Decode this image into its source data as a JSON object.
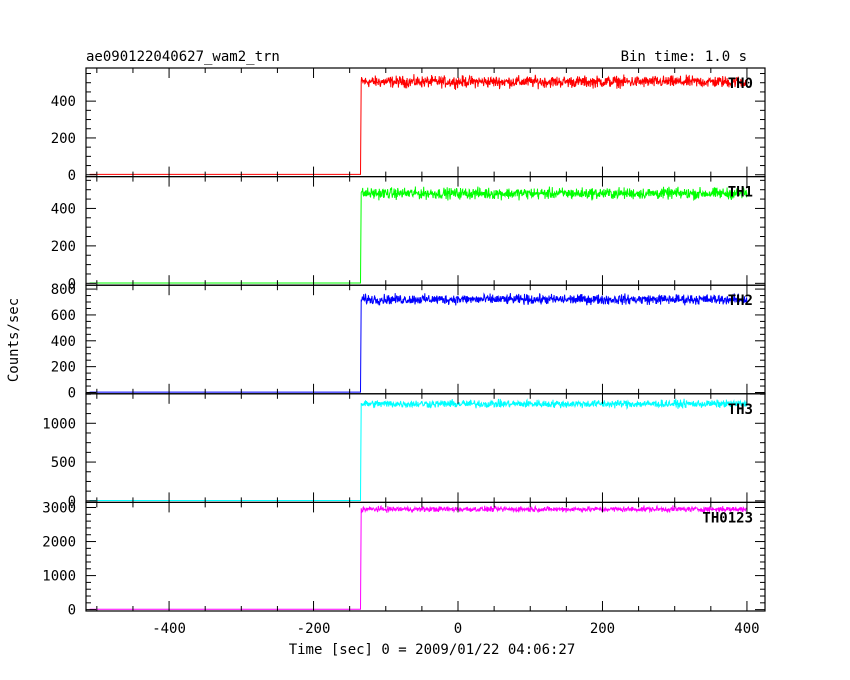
{
  "header": {
    "title": "ae090122040627_wam2_trn",
    "bin_time": "Bin time: 1.0 s"
  },
  "axes": {
    "xlabel": "Time [sec] 0 = 2009/01/22 04:06:27",
    "ylabel": "Counts/sec"
  },
  "chart_data": {
    "type": "line",
    "title": "ae090122040627_wam2_trn",
    "subtitle": "Bin time: 1.0 s",
    "xlabel": "Time [sec] 0 = 2009/01/22 04:06:27",
    "ylabel": "Counts/sec",
    "xlim": [
      -515,
      425
    ],
    "x_ticks": [
      -400,
      -200,
      0,
      200,
      400
    ],
    "grid": false,
    "step_time": -135,
    "x_end": 400,
    "panels": [
      {
        "name": "TH0",
        "color": "#ff0000",
        "ylim": [
          -10,
          580
        ],
        "y_ticks": [
          0,
          200,
          400
        ],
        "pre_level": 2,
        "post_level": 505,
        "noise": 22
      },
      {
        "name": "TH1",
        "color": "#00ff00",
        "ylim": [
          -10,
          570
        ],
        "y_ticks": [
          0,
          200,
          400
        ],
        "pre_level": 2,
        "post_level": 480,
        "noise": 21
      },
      {
        "name": "TH2",
        "color": "#0000ff",
        "ylim": [
          -10,
          830
        ],
        "y_ticks": [
          0,
          200,
          400,
          600,
          800
        ],
        "pre_level": 3,
        "post_level": 720,
        "noise": 27
      },
      {
        "name": "TH3",
        "color": "#00ffff",
        "ylim": [
          -20,
          1380
        ],
        "y_ticks": [
          0,
          500,
          1000
        ],
        "pre_level": 5,
        "post_level": 1250,
        "noise": 35
      },
      {
        "name": "TH0123",
        "color": "#ff00ff",
        "ylim": [
          -40,
          3150
        ],
        "y_ticks": [
          0,
          1000,
          2000,
          3000
        ],
        "pre_level": 12,
        "post_level": 2950,
        "noise": 55
      }
    ]
  }
}
